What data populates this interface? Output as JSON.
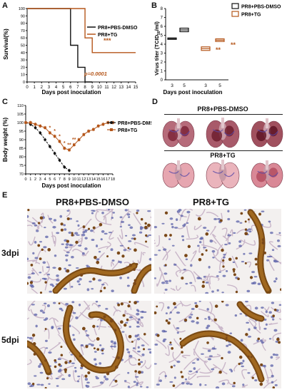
{
  "panels": {
    "A": {
      "letter": "A",
      "chart_data": {
        "type": "line",
        "ylabel": "Survival(%)",
        "xlabel": "Days post inoculation",
        "ylim": [
          0,
          100
        ],
        "yticks": [
          0,
          10,
          20,
          30,
          40,
          50,
          60,
          70,
          80,
          90,
          100
        ],
        "xticks": [
          0,
          1,
          2,
          3,
          4,
          5,
          6,
          7,
          8,
          9,
          10,
          11,
          12,
          13,
          14,
          15
        ],
        "series": [
          {
            "name": "PR8+PBS-DMSO",
            "color": "#111111",
            "steps": [
              [
                0,
                100
              ],
              [
                6,
                100
              ],
              [
                6,
                50
              ],
              [
                7,
                50
              ],
              [
                7,
                20
              ],
              [
                8,
                20
              ],
              [
                8,
                0
              ],
              [
                9,
                0
              ]
            ]
          },
          {
            "name": "PR8+TG",
            "color": "#b5561a",
            "steps": [
              [
                0,
                100
              ],
              [
                8,
                100
              ],
              [
                8,
                60
              ],
              [
                9,
                60
              ],
              [
                9,
                40
              ],
              [
                15,
                40
              ]
            ]
          }
        ],
        "annotations": {
          "stars": "***",
          "pvalue": "p=0.0001"
        }
      }
    },
    "B": {
      "letter": "B",
      "chart_data": {
        "type": "bar",
        "ylabel": "Virus titer (TCID50/ml)",
        "ylabel_main": "Virus titer (TCID",
        "ylabel_sub": "50",
        "ylabel_end": "/ml)",
        "xlabel": "Days post inoculation",
        "ylim": [
          0,
          8
        ],
        "yticks": [
          0,
          1,
          2,
          3,
          4,
          5,
          6,
          7,
          8
        ],
        "categories": [
          "3",
          "5",
          "3",
          "5"
        ],
        "series": [
          {
            "name": "PR8+PBS-DMSO",
            "color": "#111111",
            "boxes": [
              {
                "x": "3",
                "low": 4.6,
                "high": 4.7
              },
              {
                "x": "5",
                "low": 5.4,
                "high": 5.8
              }
            ]
          },
          {
            "name": "PR8+TG",
            "color": "#b5561a",
            "boxes": [
              {
                "x": "3",
                "low": 3.3,
                "high": 3.7
              },
              {
                "x": "5",
                "low": 4.3,
                "high": 4.6
              }
            ]
          }
        ],
        "annotations": [
          "**",
          "**"
        ]
      }
    },
    "C": {
      "letter": "C",
      "chart_data": {
        "type": "line",
        "ylabel": "Body weight (%)",
        "xlabel": "Days post inoculation",
        "ylim": [
          70,
          110
        ],
        "yticks": [
          70,
          75,
          80,
          85,
          90,
          95,
          100,
          105,
          110
        ],
        "xticks": [
          0,
          1,
          2,
          3,
          4,
          5,
          6,
          7,
          8,
          9,
          10,
          11,
          12,
          13,
          14,
          15,
          16,
          17,
          18
        ],
        "series": [
          {
            "name": "PR8+PBS-DMSO",
            "color": "#111111",
            "x": [
              0,
              1,
              2,
              3,
              4,
              5,
              6,
              7,
              8,
              9
            ],
            "y": [
              100,
              99,
              97,
              94,
              90,
              86,
              82,
              78,
              74,
              72
            ]
          },
          {
            "name": "PR8+TG",
            "color": "#b5561a",
            "x": [
              0,
              1,
              2,
              3,
              4,
              5,
              6,
              7,
              8,
              9,
              10,
              11,
              12,
              13,
              14,
              15,
              16,
              17,
              18
            ],
            "y": [
              100,
              100,
              99,
              98,
              97,
              94,
              92,
              89,
              85,
              84,
              87,
              90,
              93,
              95,
              96,
              98,
              99,
              100,
              100
            ]
          }
        ],
        "annotations": [
          "*",
          "*",
          "*",
          "*",
          "**",
          "**"
        ]
      }
    },
    "D": {
      "letter": "D",
      "group1": "PR8+PBS-DMSO",
      "group2": "PR8+TG"
    },
    "E": {
      "letter": "E",
      "col1": "PR8+PBS-DMSO",
      "col2": "PR8+TG",
      "row1": "3dpi",
      "row2": "5dpi"
    }
  }
}
